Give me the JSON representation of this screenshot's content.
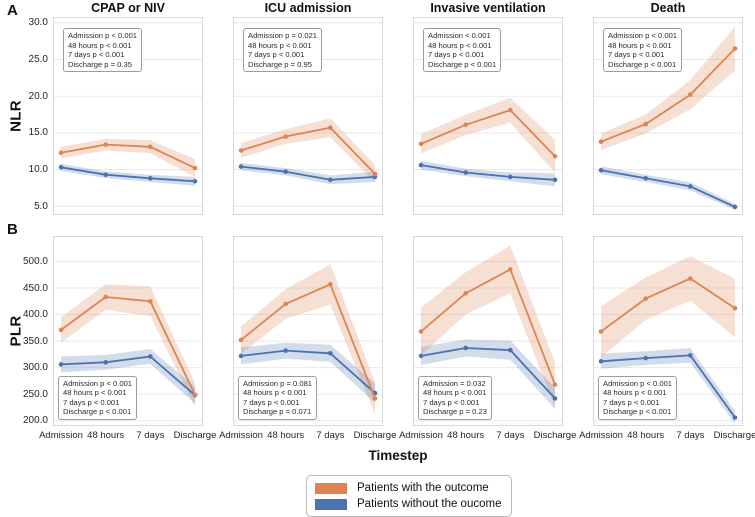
{
  "figure": {
    "label_a": "A",
    "label_b": "B",
    "row_a_ylabel": "NLR",
    "row_b_ylabel": "PLR",
    "xlabel": "Timestep",
    "legend": [
      {
        "label": "Patients with the outcome",
        "color": "#dd8452"
      },
      {
        "label": "Patients without the oucome",
        "color": "#4c72b0"
      }
    ],
    "colors": {
      "with_outcome": "#dd8452",
      "without_outcome": "#4c72b0",
      "gridline": "#e9e9e9",
      "panel_border": "#d8d8d8"
    }
  },
  "axes": {
    "row_a": {
      "ylim": [
        3.8,
        30.8
      ],
      "yticks": [
        5,
        10,
        15,
        20,
        25,
        30
      ],
      "ytick_labels": [
        "5.0",
        "10.0",
        "15.0",
        "20.0",
        "25.0",
        "30.0"
      ]
    },
    "row_b": {
      "ylim": [
        190,
        548
      ],
      "yticks": [
        200,
        250,
        300,
        350,
        400,
        450,
        500
      ],
      "ytick_labels": [
        "200.0",
        "250.0",
        "300.0",
        "350.0",
        "400.0",
        "450.0",
        "500.0"
      ]
    },
    "xtick_labels": [
      "Admission",
      "48 hours",
      "7 days",
      "Discharge"
    ]
  },
  "chart_data": [
    {
      "type": "line",
      "panel": "A",
      "metric": "NLR",
      "title": "CPAP or NIV",
      "x": [
        "Admission",
        "48 hours",
        "7 days",
        "Discharge"
      ],
      "series": [
        {
          "name": "Patients with the outcome",
          "color": "#dd8452",
          "values": [
            12.3,
            13.4,
            13.1,
            10.2
          ],
          "ci": [
            0.8,
            0.8,
            0.9,
            1.2
          ]
        },
        {
          "name": "Patients without the oucome",
          "color": "#4c72b0",
          "values": [
            10.3,
            9.3,
            8.8,
            8.4
          ],
          "ci": [
            0.5,
            0.45,
            0.5,
            0.6
          ]
        }
      ],
      "annotation": [
        "Admission p < 0.001",
        "48 hours p < 0.001",
        "7 days p < 0.001",
        "Discharge p = 0.35"
      ],
      "annotation_pos": "top-left"
    },
    {
      "type": "line",
      "panel": "A",
      "metric": "NLR",
      "title": "ICU admission",
      "x": [
        "Admission",
        "48 hours",
        "7 days",
        "Discharge"
      ],
      "series": [
        {
          "name": "Patients with the outcome",
          "color": "#dd8452",
          "values": [
            12.6,
            14.5,
            15.7,
            9.4
          ],
          "ci": [
            1.0,
            1.0,
            1.3,
            1.2
          ]
        },
        {
          "name": "Patients without the oucome",
          "color": "#4c72b0",
          "values": [
            10.4,
            9.7,
            8.6,
            9.0
          ],
          "ci": [
            0.5,
            0.5,
            0.6,
            0.7
          ]
        }
      ],
      "annotation": [
        "Admission p = 0.021",
        "48 hours p < 0.001",
        "7 days p < 0.001",
        "Discharge p = 0.95"
      ],
      "annotation_pos": "top-left"
    },
    {
      "type": "line",
      "panel": "A",
      "metric": "NLR",
      "title": "Invasive ventilation",
      "x": [
        "Admission",
        "48 hours",
        "7 days",
        "Discharge"
      ],
      "series": [
        {
          "name": "Patients with the outcome",
          "color": "#dd8452",
          "values": [
            13.5,
            16.1,
            18.1,
            11.8
          ],
          "ci": [
            1.3,
            1.4,
            1.7,
            2.2
          ]
        },
        {
          "name": "Patients without the oucome",
          "color": "#4c72b0",
          "values": [
            10.6,
            9.6,
            9.0,
            8.6
          ],
          "ci": [
            0.6,
            0.5,
            0.6,
            0.9
          ]
        }
      ],
      "annotation": [
        "Admission < 0.001",
        "48 hours p < 0.001",
        "7 days p < 0.001",
        "Discharge p < 0.001"
      ],
      "annotation_pos": "top-left"
    },
    {
      "type": "line",
      "panel": "A",
      "metric": "NLR",
      "title": "Death",
      "x": [
        "Admission",
        "48 hours",
        "7 days",
        "Discharge"
      ],
      "series": [
        {
          "name": "Patients with the outcome",
          "color": "#dd8452",
          "values": [
            13.8,
            16.2,
            20.2,
            26.5
          ],
          "ci": [
            1.1,
            1.3,
            2.0,
            3.0
          ]
        },
        {
          "name": "Patients without the oucome",
          "color": "#4c72b0",
          "values": [
            9.9,
            8.8,
            7.7,
            4.9
          ],
          "ci": [
            0.55,
            0.5,
            0.55,
            0.4
          ]
        }
      ],
      "annotation": [
        "Admission p < 0.001",
        "48 hours p < 0.001",
        "7 days p < 0.001",
        "Discharge p < 0.001"
      ],
      "annotation_pos": "top-left"
    },
    {
      "type": "line",
      "panel": "B",
      "metric": "PLR",
      "title": "CPAP or NIV",
      "x": [
        "Admission",
        "48 hours",
        "7 days",
        "Discharge"
      ],
      "series": [
        {
          "name": "Patients with the outcome",
          "color": "#dd8452",
          "values": [
            371,
            433,
            425,
            249
          ],
          "ci": [
            24,
            24,
            28,
            22
          ]
        },
        {
          "name": "Patients without the oucome",
          "color": "#4c72b0",
          "values": [
            306,
            310,
            321,
            248
          ],
          "ci": [
            15,
            14,
            14,
            16
          ]
        }
      ],
      "annotation": [
        "Admission p < 0.001",
        "48 hours p < 0.001",
        "7 days p < 0.001",
        "Discharge p < 0.001"
      ],
      "annotation_pos": "bottom-left"
    },
    {
      "type": "line",
      "panel": "B",
      "metric": "PLR",
      "title": "ICU admission",
      "x": [
        "Admission",
        "48 hours",
        "7 days",
        "Discharge"
      ],
      "series": [
        {
          "name": "Patients with the outcome",
          "color": "#dd8452",
          "values": [
            352,
            420,
            457,
            242
          ],
          "ci": [
            26,
            28,
            38,
            30
          ]
        },
        {
          "name": "Patients without the oucome",
          "color": "#4c72b0",
          "values": [
            322,
            332,
            327,
            252
          ],
          "ci": [
            16,
            15,
            16,
            18
          ]
        }
      ],
      "annotation": [
        "Admission p = 0.081",
        "48 hours p < 0.001",
        "7 days p < 0.001",
        "Discharge p = 0.071"
      ],
      "annotation_pos": "bottom-left"
    },
    {
      "type": "line",
      "panel": "B",
      "metric": "PLR",
      "title": "Invasive ventilation",
      "x": [
        "Admission",
        "48 hours",
        "7 days",
        "Discharge"
      ],
      "series": [
        {
          "name": "Patients with the outcome",
          "color": "#dd8452",
          "values": [
            368,
            440,
            485,
            268
          ],
          "ci": [
            45,
            40,
            45,
            42
          ]
        },
        {
          "name": "Patients without the oucome",
          "color": "#4c72b0",
          "values": [
            322,
            337,
            333,
            242
          ],
          "ci": [
            17,
            16,
            18,
            20
          ]
        }
      ],
      "annotation": [
        "Admission = 0.032",
        "48 hours p < 0.001",
        "7 days p < 0.001",
        "Discharge p = 0.23"
      ],
      "annotation_pos": "bottom-left"
    },
    {
      "type": "line",
      "panel": "B",
      "metric": "PLR",
      "title": "Death",
      "x": [
        "Admission",
        "48 hours",
        "7 days",
        "Discharge"
      ],
      "series": [
        {
          "name": "Patients with the outcome",
          "color": "#dd8452",
          "values": [
            368,
            430,
            468,
            412
          ],
          "ci": [
            48,
            40,
            42,
            55
          ]
        },
        {
          "name": "Patients without the oucome",
          "color": "#4c72b0",
          "values": [
            312,
            318,
            323,
            206
          ],
          "ci": [
            14,
            13,
            14,
            12
          ]
        }
      ],
      "annotation": [
        "Admission p < 0.001",
        "48 hours p < 0.001",
        "7 days p < 0.001",
        "Discharge p < 0.001"
      ],
      "annotation_pos": "bottom-left"
    }
  ]
}
